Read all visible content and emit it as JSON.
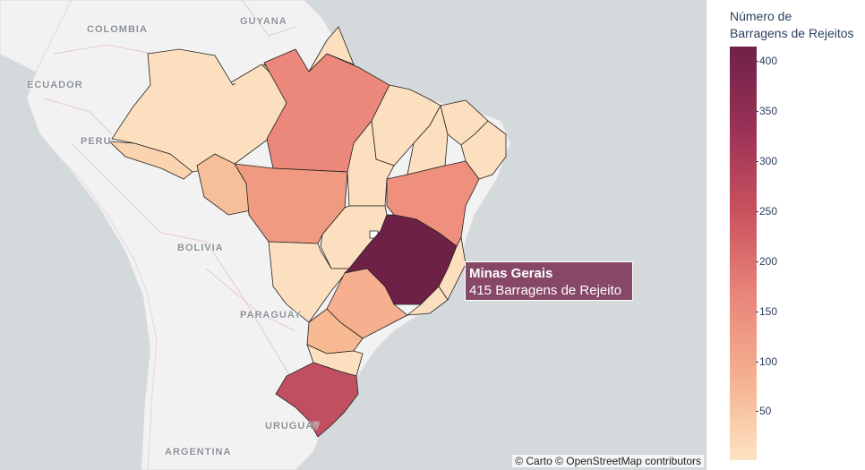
{
  "map": {
    "country_labels": [
      "COLOMBIA",
      "GUYANA",
      "ECUADOR",
      "PERU",
      "BOLIVIA",
      "PARAGUAY",
      "URUGUAY",
      "ARGENTINA"
    ],
    "attribution": "© Carto © OpenStreetMap contributors"
  },
  "tooltip": {
    "state": "Minas Gerais",
    "value_text": "415 Barragens de Rejeito"
  },
  "legend": {
    "title_line1": "Número de",
    "title_line2": "Barragens de Rejeitos",
    "ticks": [
      "400",
      "350",
      "300",
      "250",
      "200",
      "150",
      "100",
      "50"
    ]
  },
  "colors": {
    "max": "#6e2147",
    "high": "#c9525e",
    "mid": "#e8857a",
    "low": "#fde3c2"
  }
}
